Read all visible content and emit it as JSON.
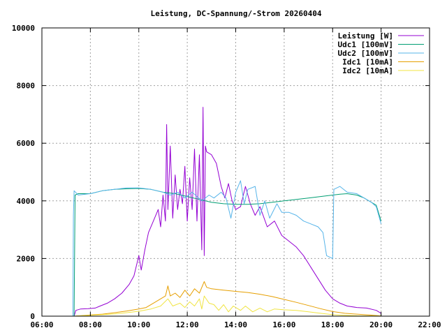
{
  "chart_data": {
    "type": "line",
    "title": "Leistung, DC-Spannung/-Strom 20260404",
    "xlabel": "",
    "ylabel": "",
    "xlim": [
      6,
      22
    ],
    "ylim": [
      0,
      10000
    ],
    "x_ticks": [
      "06:00",
      "08:00",
      "10:00",
      "12:00",
      "14:00",
      "16:00",
      "18:00",
      "20:00",
      "22:00"
    ],
    "y_ticks": [
      "0",
      "2000",
      "4000",
      "6000",
      "8000",
      "10000"
    ],
    "grid": true,
    "legend_position": "top-right",
    "series": [
      {
        "name": "Leistung [W]",
        "color": "#9400d3",
        "points": [
          [
            7.33,
            0
          ],
          [
            7.4,
            200
          ],
          [
            7.6,
            250
          ],
          [
            7.9,
            260
          ],
          [
            8.2,
            280
          ],
          [
            8.4,
            350
          ],
          [
            8.7,
            450
          ],
          [
            9.0,
            600
          ],
          [
            9.3,
            800
          ],
          [
            9.6,
            1100
          ],
          [
            9.8,
            1400
          ],
          [
            10.0,
            2100
          ],
          [
            10.1,
            1600
          ],
          [
            10.25,
            2300
          ],
          [
            10.4,
            2900
          ],
          [
            10.6,
            3300
          ],
          [
            10.8,
            3700
          ],
          [
            10.9,
            3100
          ],
          [
            11.0,
            4200
          ],
          [
            11.1,
            3300
          ],
          [
            11.15,
            6650
          ],
          [
            11.2,
            3700
          ],
          [
            11.3,
            5900
          ],
          [
            11.4,
            3400
          ],
          [
            11.5,
            4900
          ],
          [
            11.6,
            3700
          ],
          [
            11.7,
            4400
          ],
          [
            11.8,
            3900
          ],
          [
            11.9,
            5200
          ],
          [
            12.0,
            3300
          ],
          [
            12.1,
            4800
          ],
          [
            12.2,
            3700
          ],
          [
            12.3,
            5800
          ],
          [
            12.4,
            3300
          ],
          [
            12.5,
            5600
          ],
          [
            12.6,
            2300
          ],
          [
            12.65,
            7250
          ],
          [
            12.7,
            2100
          ],
          [
            12.75,
            5900
          ],
          [
            12.8,
            5700
          ],
          [
            13.0,
            5600
          ],
          [
            13.2,
            5300
          ],
          [
            13.4,
            4500
          ],
          [
            13.55,
            4100
          ],
          [
            13.7,
            4600
          ],
          [
            13.85,
            4000
          ],
          [
            14.0,
            3700
          ],
          [
            14.2,
            3800
          ],
          [
            14.4,
            4500
          ],
          [
            14.6,
            3900
          ],
          [
            14.8,
            3500
          ],
          [
            15.0,
            3800
          ],
          [
            15.3,
            3100
          ],
          [
            15.6,
            3300
          ],
          [
            15.9,
            2800
          ],
          [
            16.2,
            2600
          ],
          [
            16.5,
            2400
          ],
          [
            16.8,
            2100
          ],
          [
            17.1,
            1700
          ],
          [
            17.4,
            1300
          ],
          [
            17.7,
            900
          ],
          [
            18.0,
            600
          ],
          [
            18.3,
            450
          ],
          [
            18.6,
            350
          ],
          [
            19.0,
            300
          ],
          [
            19.4,
            280
          ],
          [
            19.8,
            200
          ],
          [
            20.0,
            100
          ]
        ]
      },
      {
        "name": "Udc1 [100mV]",
        "color": "#009e73",
        "points": [
          [
            7.33,
            0
          ],
          [
            7.37,
            4200
          ],
          [
            7.5,
            4250
          ],
          [
            8.0,
            4250
          ],
          [
            8.5,
            4350
          ],
          [
            9.0,
            4400
          ],
          [
            9.5,
            4420
          ],
          [
            10.0,
            4430
          ],
          [
            10.5,
            4400
          ],
          [
            11.0,
            4300
          ],
          [
            11.5,
            4250
          ],
          [
            12.0,
            4150
          ],
          [
            12.5,
            4050
          ],
          [
            13.0,
            3950
          ],
          [
            13.5,
            3900
          ],
          [
            14.0,
            3880
          ],
          [
            14.5,
            3880
          ],
          [
            15.0,
            3900
          ],
          [
            15.5,
            3950
          ],
          [
            16.0,
            4000
          ],
          [
            16.5,
            4050
          ],
          [
            17.0,
            4100
          ],
          [
            17.5,
            4150
          ],
          [
            18.0,
            4200
          ],
          [
            18.3,
            4230
          ],
          [
            18.6,
            4250
          ],
          [
            19.0,
            4200
          ],
          [
            19.3,
            4100
          ],
          [
            19.6,
            3950
          ],
          [
            19.8,
            3850
          ],
          [
            20.0,
            3300
          ]
        ]
      },
      {
        "name": "Udc2 [100mV]",
        "color": "#56b4e9",
        "points": [
          [
            7.28,
            0
          ],
          [
            7.3,
            3500
          ],
          [
            7.33,
            4350
          ],
          [
            7.5,
            4200
          ],
          [
            8.0,
            4250
          ],
          [
            8.5,
            4350
          ],
          [
            9.0,
            4400
          ],
          [
            9.5,
            4450
          ],
          [
            10.0,
            4450
          ],
          [
            10.5,
            4400
          ],
          [
            11.0,
            4300
          ],
          [
            11.3,
            4200
          ],
          [
            11.6,
            4300
          ],
          [
            11.9,
            4100
          ],
          [
            12.2,
            4300
          ],
          [
            12.6,
            4000
          ],
          [
            12.9,
            4200
          ],
          [
            13.1,
            4100
          ],
          [
            13.4,
            4300
          ],
          [
            13.6,
            4100
          ],
          [
            13.8,
            3400
          ],
          [
            14.0,
            4300
          ],
          [
            14.2,
            4700
          ],
          [
            14.35,
            3900
          ],
          [
            14.5,
            4400
          ],
          [
            14.8,
            4500
          ],
          [
            15.0,
            3500
          ],
          [
            15.2,
            4000
          ],
          [
            15.4,
            3400
          ],
          [
            15.7,
            3900
          ],
          [
            15.9,
            3600
          ],
          [
            16.2,
            3600
          ],
          [
            16.5,
            3500
          ],
          [
            16.8,
            3300
          ],
          [
            17.1,
            3200
          ],
          [
            17.4,
            3100
          ],
          [
            17.6,
            2900
          ],
          [
            17.75,
            2100
          ],
          [
            18.0,
            2000
          ],
          [
            18.05,
            4400
          ],
          [
            18.3,
            4500
          ],
          [
            18.6,
            4300
          ],
          [
            19.0,
            4250
          ],
          [
            19.3,
            4100
          ],
          [
            19.6,
            3950
          ],
          [
            19.8,
            3800
          ],
          [
            20.0,
            3200
          ]
        ]
      },
      {
        "name": "Idc1 [10mA]",
        "color": "#e69f00",
        "points": [
          [
            7.33,
            0
          ],
          [
            8.0,
            40
          ],
          [
            8.5,
            70
          ],
          [
            9.0,
            120
          ],
          [
            9.5,
            180
          ],
          [
            10.0,
            250
          ],
          [
            10.3,
            300
          ],
          [
            10.6,
            450
          ],
          [
            10.9,
            600
          ],
          [
            11.1,
            700
          ],
          [
            11.2,
            1050
          ],
          [
            11.3,
            700
          ],
          [
            11.5,
            800
          ],
          [
            11.7,
            650
          ],
          [
            11.9,
            900
          ],
          [
            12.1,
            700
          ],
          [
            12.3,
            950
          ],
          [
            12.5,
            800
          ],
          [
            12.7,
            1200
          ],
          [
            12.8,
            1000
          ],
          [
            13.0,
            950
          ],
          [
            13.5,
            900
          ],
          [
            14.0,
            860
          ],
          [
            14.5,
            820
          ],
          [
            15.0,
            760
          ],
          [
            15.5,
            680
          ],
          [
            16.0,
            580
          ],
          [
            16.5,
            480
          ],
          [
            17.0,
            370
          ],
          [
            17.5,
            260
          ],
          [
            18.0,
            160
          ],
          [
            18.5,
            100
          ],
          [
            19.0,
            70
          ],
          [
            19.5,
            40
          ],
          [
            20.0,
            10
          ]
        ]
      },
      {
        "name": "Idc2 [10mA]",
        "color": "#f0e442",
        "points": [
          [
            7.33,
            0
          ],
          [
            8.0,
            30
          ],
          [
            8.5,
            50
          ],
          [
            9.0,
            80
          ],
          [
            9.5,
            120
          ],
          [
            10.0,
            170
          ],
          [
            10.5,
            250
          ],
          [
            10.9,
            350
          ],
          [
            11.2,
            600
          ],
          [
            11.4,
            350
          ],
          [
            11.7,
            450
          ],
          [
            11.9,
            300
          ],
          [
            12.1,
            500
          ],
          [
            12.3,
            350
          ],
          [
            12.5,
            600
          ],
          [
            12.6,
            250
          ],
          [
            12.7,
            700
          ],
          [
            12.9,
            450
          ],
          [
            13.1,
            400
          ],
          [
            13.3,
            200
          ],
          [
            13.5,
            400
          ],
          [
            13.7,
            150
          ],
          [
            13.9,
            350
          ],
          [
            14.2,
            200
          ],
          [
            14.4,
            350
          ],
          [
            14.7,
            150
          ],
          [
            15.0,
            280
          ],
          [
            15.3,
            150
          ],
          [
            15.6,
            250
          ],
          [
            16.0,
            220
          ],
          [
            16.5,
            200
          ],
          [
            17.0,
            150
          ],
          [
            17.5,
            100
          ],
          [
            18.0,
            50
          ],
          [
            18.5,
            30
          ],
          [
            19.0,
            15
          ],
          [
            20.0,
            5
          ]
        ]
      }
    ]
  }
}
